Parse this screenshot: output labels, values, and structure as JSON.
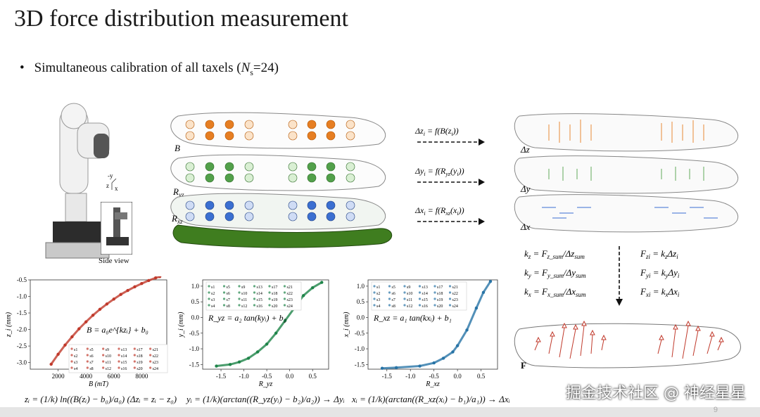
{
  "slide": {
    "title": "3D force distribution measurement",
    "bullet_prefix": "Simultaneous calibration of all taxels (",
    "bullet_var": "N",
    "bullet_sub": "s",
    "bullet_suffix": "=24)",
    "page_number": "9",
    "watermark": "掘金技术社区 @ 神经星星"
  },
  "robot_photo": {
    "axis_y": "-y",
    "axis_z": "z",
    "axis_x": "x",
    "inset_caption": "Side view"
  },
  "layers": {
    "b": "B",
    "ryz": "R",
    "ryz_sub": "yz",
    "rxz": "R",
    "rxz_sub": "xz"
  },
  "mappings": {
    "dz": "Δz",
    "dz_rhs": "= f(B(z",
    "dy": "Δy",
    "dy_rhs": "= f(R",
    "dx": "Δx",
    "dx_rhs": "= f(R"
  },
  "displacement_panels": {
    "dz": "Δz",
    "dy": "Δy",
    "dx": "Δx",
    "force": "F"
  },
  "stiffness": {
    "kz_line": "k",
    "kz_sub": "z",
    "kz_rhs": "= F",
    "kz_rhs_sub": "z_sum",
    "kz_rhs2": "/Δz",
    "kz_rhs2_sub": "sum",
    "ky_sub": "y",
    "ky_rhs_sub": "y_sum",
    "ky_rhs2": "/Δy",
    "kx_sub": "x",
    "kx_rhs_sub": "x_sum",
    "kx_rhs2": "/Δx",
    "fzi": "F",
    "fzi_sub": "zi",
    "fzi_rhs": "= k",
    "fzi_rhs_tail": "Δz",
    "fyi_sub": "yi",
    "fyi_rhs_tail": "Δy",
    "fxi_sub": "xi",
    "fxi_rhs_tail": "Δx"
  },
  "chart_data": [
    {
      "type": "scatter",
      "title": "",
      "xlabel": "B (mT)",
      "ylabel": "z_i (mm)",
      "xlim": [
        0,
        9800
      ],
      "ylim": [
        -3.2,
        -0.5
      ],
      "xticks": [
        "2000",
        "4000",
        "6000",
        "8000"
      ],
      "yticks": [
        "-0.5",
        "-1.0",
        "-1.5",
        "-2.0",
        "-2.5",
        "-3.0"
      ],
      "color": "#c0392b",
      "x": [
        1500,
        2000,
        2500,
        3000,
        3500,
        4000,
        4500,
        5000,
        5500,
        6000,
        6500,
        7000,
        7500,
        8000,
        8500,
        9000,
        9300
      ],
      "y": [
        -3.05,
        -2.75,
        -2.47,
        -2.22,
        -1.98,
        -1.77,
        -1.57,
        -1.39,
        -1.23,
        -1.08,
        -0.94,
        -0.82,
        -0.71,
        -0.61,
        -0.52,
        -0.44,
        -0.4
      ],
      "equation": "B = a₀e^{kzᵢ} + b₀",
      "legend": [
        "s1",
        "s5",
        "s9",
        "s13",
        "s17",
        "s21",
        "s2",
        "s6",
        "s10",
        "s14",
        "s18",
        "s22",
        "s3",
        "s7",
        "s11",
        "s15",
        "s19",
        "s23",
        "s4",
        "s8",
        "s12",
        "s16",
        "s20",
        "s24"
      ],
      "formula_below": "zᵢ = (1/k) ln((B(zᵢ) − b₀)/a₀)   (Δzᵢ = zᵢ − z₀)"
    },
    {
      "type": "scatter",
      "title": "",
      "xlabel": "R_yz",
      "ylabel": "y_i (mm)",
      "xlim": [
        -1.9,
        0.85
      ],
      "ylim": [
        -1.65,
        1.2
      ],
      "xticks": [
        "-1.5",
        "-1.0",
        "-0.5",
        "0.0",
        "0.5"
      ],
      "yticks": [
        "1.0",
        "0.5",
        "0.0",
        "-0.5",
        "-1.0",
        "-1.5"
      ],
      "color": "#1e8449",
      "x": [
        -1.6,
        -1.3,
        -1.1,
        -0.9,
        -0.7,
        -0.5,
        -0.3,
        -0.1,
        0.1,
        0.3,
        0.5,
        0.7
      ],
      "y": [
        -1.55,
        -1.5,
        -1.42,
        -1.3,
        -1.1,
        -0.85,
        -0.5,
        -0.1,
        0.3,
        0.7,
        0.95,
        1.12
      ],
      "equation": "R_yz = a₂ tan(kyᵢ) + b₂",
      "legend": [
        "s1",
        "s5",
        "s9",
        "s13",
        "s17",
        "s21",
        "s2",
        "s6",
        "s10",
        "s14",
        "s18",
        "s22",
        "s3",
        "s7",
        "s11",
        "s15",
        "s19",
        "s23",
        "s4",
        "s8",
        "s12",
        "s16",
        "s20",
        "s24"
      ],
      "formula_below": "yᵢ = (1/k)(arctan((R_yz(yᵢ) − b₂)/a₂)) → Δyᵢ"
    },
    {
      "type": "scatter",
      "title": "",
      "xlabel": "R_xz",
      "ylabel": "x_i (mm)",
      "xlim": [
        -1.9,
        0.85
      ],
      "ylim": [
        -1.65,
        1.2
      ],
      "xticks": [
        "-1.5",
        "-1.0",
        "-0.5",
        "0.0",
        "0.5"
      ],
      "yticks": [
        "1.0",
        "0.5",
        "0.0",
        "-0.5",
        "-1.0",
        "-1.5"
      ],
      "color": "#2874a6",
      "x": [
        -1.6,
        -1.3,
        -0.8,
        -0.5,
        -0.3,
        -0.1,
        0.0,
        0.2,
        0.4,
        0.55,
        0.7
      ],
      "y": [
        -1.62,
        -1.6,
        -1.55,
        -1.45,
        -1.3,
        -1.1,
        -0.9,
        -0.4,
        0.3,
        0.8,
        1.15
      ],
      "equation": "R_xz = a₁ tan(kxᵢ) + b₁",
      "legend": [
        "s1",
        "s5",
        "s9",
        "s13",
        "s17",
        "s21",
        "s2",
        "s6",
        "s10",
        "s14",
        "s18",
        "s22",
        "s3",
        "s7",
        "s11",
        "s15",
        "s19",
        "s23",
        "s4",
        "s8",
        "s12",
        "s16",
        "s20",
        "s24"
      ],
      "formula_below": "xᵢ = (1/k)(arctan((R_xz(xᵢ) − b₁)/a₁)) → Δxᵢ"
    }
  ],
  "colors": {
    "orange": "#e67e22",
    "green": "#52a04a",
    "blue": "#3b6fd1",
    "red": "#c0392b"
  }
}
